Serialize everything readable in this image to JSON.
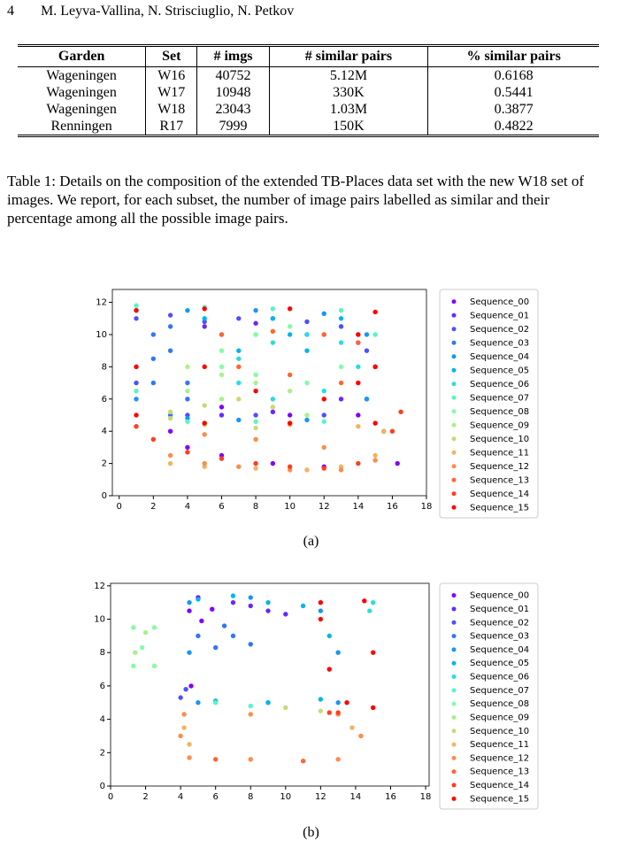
{
  "header": {
    "page": "4",
    "authors": "M. Leyva-Vallina, N. Strisciuglio, N. Petkov"
  },
  "table": {
    "columns": [
      "Garden",
      "Set",
      "# imgs",
      "# similar pairs",
      "% similar pairs"
    ],
    "rows": [
      [
        "Wageningen",
        "W16",
        "40752",
        "5.12M",
        "0.6168"
      ],
      [
        "Wageningen",
        "W17",
        "10948",
        "330K",
        "0.5441"
      ],
      [
        "Wageningen",
        "W18",
        "23043",
        "1.03M",
        "0.3877"
      ],
      [
        "Renningen",
        "R17",
        "7999",
        "150K",
        "0.4822"
      ]
    ]
  },
  "caption": "Table 1: Details on the composition of the extended TB-Places data set with the new W18 set of images. We report, for each subset, the number of image pairs labelled as similar and their percentage among all the possible image pairs.",
  "chart_data": [
    {
      "type": "scatter",
      "caption": "(a)",
      "xlim": [
        -0.4,
        18
      ],
      "ylim": [
        0,
        12.8
      ],
      "xticks": [
        0,
        2,
        4,
        6,
        8,
        10,
        12,
        14,
        16,
        18
      ],
      "yticks": [
        0,
        2,
        4,
        6,
        8,
        10,
        12
      ],
      "series": [
        {
          "name": "Sequence_00",
          "color": "#8000ff",
          "x": [
            4,
            6,
            9,
            12,
            15.5,
            16.3,
            14,
            10,
            6,
            3
          ],
          "y": [
            3,
            2.5,
            2,
            1.8,
            4,
            2,
            5,
            5,
            5.5,
            4
          ]
        },
        {
          "name": "Sequence_01",
          "color": "#6629fe",
          "x": [
            5,
            8,
            11,
            14,
            15,
            13,
            9,
            6
          ],
          "y": [
            10.5,
            10.7,
            10,
            9.5,
            8,
            6,
            5.2,
            5
          ]
        },
        {
          "name": "Sequence_02",
          "color": "#4c50fc",
          "x": [
            1,
            3,
            5,
            7,
            9,
            11,
            13,
            14.5,
            14.5,
            12,
            8,
            4,
            1
          ],
          "y": [
            11,
            11.2,
            10.8,
            11,
            11,
            10.8,
            10.5,
            9,
            6,
            5,
            5,
            5,
            7
          ]
        },
        {
          "name": "Sequence_03",
          "color": "#3176f8",
          "x": [
            2,
            3,
            3,
            2,
            2,
            4,
            4,
            3
          ],
          "y": [
            10,
            10.5,
            9,
            8.5,
            7,
            7,
            6,
            5
          ]
        },
        {
          "name": "Sequence_04",
          "color": "#1996f3",
          "x": [
            1,
            4,
            8,
            12,
            14.5,
            14.5,
            11,
            7,
            4,
            1
          ],
          "y": [
            11.5,
            11.5,
            11.5,
            11.3,
            10,
            6,
            4.7,
            4.7,
            4.8,
            6
          ]
        },
        {
          "name": "Sequence_05",
          "color": "#00b5eb",
          "x": [
            5,
            6,
            7,
            8,
            9,
            10,
            11,
            12,
            13,
            14
          ],
          "y": [
            11,
            10,
            9,
            10,
            11,
            10,
            9,
            10,
            11,
            10
          ]
        },
        {
          "name": "Sequence_06",
          "color": "#2adddd",
          "x": [
            7,
            9,
            11,
            13,
            14,
            12,
            9,
            7
          ],
          "y": [
            8.5,
            9.5,
            10,
            9.5,
            8,
            6.5,
            6,
            7
          ]
        },
        {
          "name": "Sequence_07",
          "color": "#58f5c6",
          "x": [
            1,
            5,
            9,
            13,
            15,
            15,
            12,
            8,
            4,
            1
          ],
          "y": [
            11.8,
            11.7,
            11.6,
            11.5,
            10,
            4.5,
            4.6,
            4.6,
            4.6,
            6.5
          ]
        },
        {
          "name": "Sequence_08",
          "color": "#84fca8",
          "x": [
            6,
            8,
            10,
            12,
            13,
            11,
            8,
            6
          ],
          "y": [
            9,
            10,
            10.5,
            10,
            8,
            7,
            7.5,
            8
          ]
        },
        {
          "name": "Sequence_09",
          "color": "#a9f08c",
          "x": [
            4,
            6,
            8,
            10,
            11,
            9,
            6,
            4
          ],
          "y": [
            8,
            7.5,
            7,
            6.5,
            5,
            5.5,
            6,
            6.5
          ]
        },
        {
          "name": "Sequence_10",
          "color": "#cdd776",
          "x": [
            3,
            5,
            7,
            9,
            10,
            8,
            5,
            3
          ],
          "y": [
            5.2,
            5.6,
            6,
            5.5,
            4.5,
            4.2,
            4.4,
            4.8
          ]
        },
        {
          "name": "Sequence_11",
          "color": "#f1b45e",
          "x": [
            3,
            5,
            8,
            11,
            13,
            15,
            15.5,
            14,
            10,
            5
          ],
          "y": [
            2,
            1.8,
            1.7,
            1.6,
            1.8,
            2.5,
            4,
            4.3,
            4.4,
            4.5
          ]
        },
        {
          "name": "Sequence_12",
          "color": "#ff8c49",
          "x": [
            3,
            5,
            7,
            10,
            13,
            15,
            12,
            8,
            5
          ],
          "y": [
            2.5,
            2,
            1.8,
            1.6,
            1.6,
            2.2,
            3,
            3.5,
            3.8
          ]
        },
        {
          "name": "Sequence_13",
          "color": "#ff6535",
          "x": [
            6,
            9,
            12,
            14,
            15,
            13,
            10,
            7
          ],
          "y": [
            10,
            10.2,
            10,
            9.5,
            8,
            7,
            7.5,
            8
          ]
        },
        {
          "name": "Sequence_14",
          "color": "#ff3e1f",
          "x": [
            1,
            2,
            4,
            6,
            8,
            10,
            12,
            14,
            16,
            16.5
          ],
          "y": [
            4.3,
            3.5,
            2.7,
            2.3,
            2,
            1.8,
            1.7,
            2,
            4,
            5.2
          ]
        },
        {
          "name": "Sequence_15",
          "color": "#ff0000",
          "x": [
            1,
            5,
            10,
            15,
            15,
            15,
            10,
            5,
            1,
            1,
            5,
            8,
            12,
            14,
            14
          ],
          "y": [
            11.5,
            11.6,
            11.6,
            11.4,
            8,
            4.5,
            4.5,
            4.5,
            5,
            8,
            8,
            6.5,
            6,
            7,
            10
          ]
        }
      ]
    },
    {
      "type": "scatter",
      "caption": "(b)",
      "xlim": [
        0,
        18.2
      ],
      "ylim": [
        0,
        12.15
      ],
      "xticks": [
        0,
        2,
        4,
        6,
        8,
        10,
        12,
        14,
        16,
        18
      ],
      "yticks": [
        0,
        2,
        4,
        6,
        8,
        10,
        12
      ],
      "series": [
        {
          "name": "Sequence_00",
          "color": "#8000ff",
          "x": [
            4.5,
            5,
            5.8,
            5.2,
            4.6
          ],
          "y": [
            10.5,
            11.3,
            10.6,
            9.9,
            6
          ]
        },
        {
          "name": "Sequence_01",
          "color": "#6629fe",
          "x": [
            7,
            8,
            9,
            10
          ],
          "y": [
            11,
            10.8,
            10.5,
            10.3
          ]
        },
        {
          "name": "Sequence_02",
          "color": "#4c50fc",
          "x": [
            4,
            4.3
          ],
          "y": [
            5.3,
            5.8
          ]
        },
        {
          "name": "Sequence_03",
          "color": "#3176f8",
          "x": [
            5,
            6,
            7,
            8,
            6.5
          ],
          "y": [
            9,
            8.3,
            9,
            8.5,
            9.6
          ]
        },
        {
          "name": "Sequence_04",
          "color": "#1996f3",
          "x": [
            4.5,
            8,
            12,
            13,
            13,
            9,
            5,
            4.5
          ],
          "y": [
            11,
            11.3,
            10.5,
            8,
            5,
            5,
            5,
            8
          ]
        },
        {
          "name": "Sequence_05",
          "color": "#00b5eb",
          "x": [
            5,
            7,
            9,
            11,
            12.5,
            12,
            9,
            6
          ],
          "y": [
            11.2,
            11.4,
            11,
            10.8,
            9,
            5.2,
            5,
            5.1
          ]
        },
        {
          "name": "Sequence_06",
          "color": "#2adddd",
          "x": [
            14.8,
            15
          ],
          "y": [
            10.5,
            11
          ]
        },
        {
          "name": "Sequence_07",
          "color": "#58f5c6",
          "x": [
            6,
            8
          ],
          "y": [
            5,
            4.8
          ]
        },
        {
          "name": "Sequence_08",
          "color": "#84fca8",
          "x": [
            1.3,
            2.5,
            2.5,
            1.3,
            1.8
          ],
          "y": [
            9.5,
            9.5,
            7.2,
            7.2,
            8.3
          ]
        },
        {
          "name": "Sequence_09",
          "color": "#a9f08c",
          "x": [
            2,
            1.4
          ],
          "y": [
            9.2,
            8
          ]
        },
        {
          "name": "Sequence_10",
          "color": "#cdd776",
          "x": [
            10,
            12
          ],
          "y": [
            4.7,
            4.5
          ]
        },
        {
          "name": "Sequence_11",
          "color": "#f1b45e",
          "x": [
            4.2,
            4.5,
            13.8
          ],
          "y": [
            3.5,
            2.5,
            3.5
          ]
        },
        {
          "name": "Sequence_12",
          "color": "#ff8c49",
          "x": [
            4.2,
            8,
            13,
            14.3,
            13,
            8,
            4.5,
            4
          ],
          "y": [
            4.3,
            4.3,
            4.3,
            3,
            1.6,
            1.6,
            1.7,
            3
          ]
        },
        {
          "name": "Sequence_13",
          "color": "#ff6535",
          "x": [
            6,
            11
          ],
          "y": [
            1.6,
            1.5
          ]
        },
        {
          "name": "Sequence_14",
          "color": "#ff3e1f",
          "x": [
            12.5,
            13
          ],
          "y": [
            4.4,
            4.4
          ]
        },
        {
          "name": "Sequence_15",
          "color": "#ff0000",
          "x": [
            12,
            14.5,
            15,
            15,
            13.5,
            12.5,
            12
          ],
          "y": [
            11,
            11.1,
            8,
            4.7,
            5,
            7,
            10
          ]
        }
      ]
    }
  ]
}
